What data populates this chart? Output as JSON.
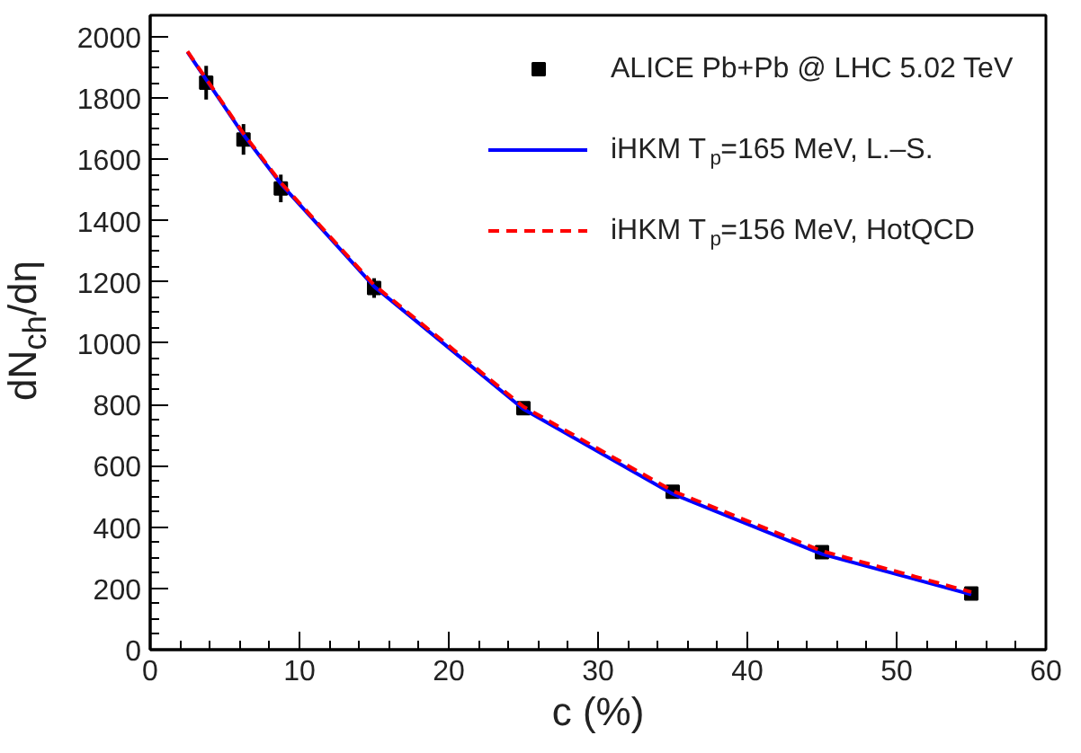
{
  "chart_data": {
    "type": "scatter",
    "xlabel": "c (%)",
    "ylabel": "dN$_{ch}$/dη",
    "xlim": [
      0,
      60
    ],
    "xticks": [
      0,
      10,
      20,
      30,
      40,
      50,
      60
    ],
    "ylim": [
      0,
      2070
    ],
    "yticks": [
      0,
      200,
      400,
      600,
      800,
      1000,
      1200,
      1400,
      1600,
      1800,
      2000
    ],
    "grid": false,
    "legend": "top right",
    "series": [
      {
        "name": "ALICE Pb+Pb @ LHC 5.02 TeV",
        "marker": "square",
        "color": "#000000",
        "x": [
          3.75,
          6.25,
          8.75,
          15,
          25,
          35,
          45,
          55
        ],
        "values": [
          1850,
          1665,
          1505,
          1180,
          788,
          515,
          318,
          183
        ],
        "errors": [
          55,
          50,
          45,
          32,
          20,
          12,
          8,
          6
        ]
      },
      {
        "name": "iHKM T$_{p}$=165 MeV, L.–S.",
        "type": "line",
        "line_style": "solid",
        "color": "#0000ff",
        "x": [
          2.5,
          3.75,
          6.25,
          8.75,
          15,
          25,
          35,
          45,
          55
        ],
        "values": [
          1950,
          1860,
          1680,
          1520,
          1185,
          785,
          508,
          312,
          180
        ]
      },
      {
        "name": "iHKM T$_{p}$=156 MeV, HotQCD",
        "type": "line",
        "line_style": "dashed",
        "color": "#ff0000",
        "x": [
          2.5,
          3.75,
          6.25,
          8.75,
          15,
          25,
          35,
          45,
          55
        ],
        "values": [
          1952,
          1863,
          1684,
          1524,
          1190,
          793,
          518,
          322,
          188
        ]
      }
    ]
  }
}
